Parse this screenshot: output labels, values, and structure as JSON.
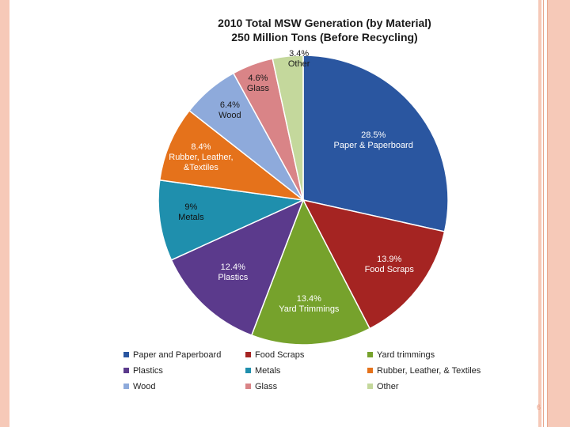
{
  "chart_data": {
    "type": "pie",
    "title": "2010 Total MSW Generation (by Material)",
    "subtitle": "250 Million Tons (Before Recycling)",
    "slices": [
      {
        "name": "Paper & Paperboard",
        "value": 28.5,
        "label": "28.5%",
        "color": "#2a56a0"
      },
      {
        "name": "Food Scraps",
        "value": 13.9,
        "label": "13.9%",
        "color": "#a52422"
      },
      {
        "name": "Yard Trimmings",
        "value": 13.4,
        "label": "13.4%",
        "color": "#76a22c"
      },
      {
        "name": "Plastics",
        "value": 12.4,
        "label": "12.4%",
        "color": "#5b3a8c"
      },
      {
        "name": "Metals",
        "value": 9,
        "label": "9%",
        "color": "#1f8fad"
      },
      {
        "name": "Rubber, Leather, &Textiles",
        "value": 8.4,
        "label": "8.4%",
        "color": "#e5721b"
      },
      {
        "name": "Wood",
        "value": 6.4,
        "label": "6.4%",
        "color": "#8eaadb"
      },
      {
        "name": "Glass",
        "value": 4.6,
        "label": "4.6%",
        "color": "#d98487"
      },
      {
        "name": "Other",
        "value": 3.4,
        "label": "3.4%",
        "color": "#c4d89c"
      }
    ],
    "legend": [
      {
        "label": "Paper and Paperboard",
        "color": "#2a56a0"
      },
      {
        "label": "Food Scraps",
        "color": "#a52422"
      },
      {
        "label": "Yard trimmings",
        "color": "#76a22c"
      },
      {
        "label": "Plastics",
        "color": "#5b3a8c"
      },
      {
        "label": "Metals",
        "color": "#1f8fad"
      },
      {
        "label": "Rubber, Leather, & Textiles",
        "color": "#e5721b"
      },
      {
        "label": "Wood",
        "color": "#8eaadb"
      },
      {
        "label": "Glass",
        "color": "#d98487"
      },
      {
        "label": "Other",
        "color": "#c4d89c"
      }
    ],
    "legend_placement": "bottom"
  },
  "page_number": "6"
}
